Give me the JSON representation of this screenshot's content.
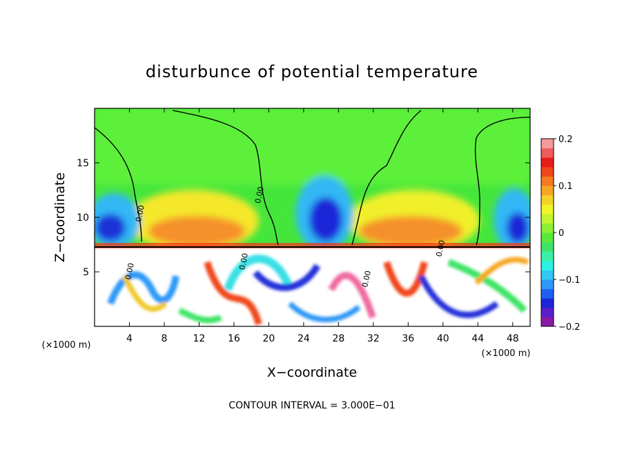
{
  "chart_data": {
    "type": "heatmap",
    "title": "disturbunce of potential temperature",
    "xlabel": "X−coordinate",
    "ylabel": "Z−coordinate",
    "x_unit": "(×1000 m)",
    "z_unit": "(×1000 m)",
    "xlim": [
      0,
      50
    ],
    "ylim": [
      0,
      20
    ],
    "x_ticks": [
      4,
      8,
      12,
      16,
      20,
      24,
      28,
      32,
      36,
      40,
      44,
      48
    ],
    "x_tick_labels": [
      "4",
      "8",
      "12",
      "16",
      "20",
      "24",
      "28",
      "32",
      "36",
      "40",
      "44",
      "48"
    ],
    "y_ticks": [
      5,
      10,
      15
    ],
    "y_tick_labels": [
      "5",
      "10",
      "15"
    ],
    "contour_labels": [
      {
        "text": "0.00",
        "x": 5.5,
        "z": 10.3
      },
      {
        "text": "0.00",
        "x": 19.2,
        "z": 12.0
      },
      {
        "text": "0.00",
        "x": 17.4,
        "z": 5.9
      },
      {
        "text": "0.00",
        "x": 31.5,
        "z": 4.3
      },
      {
        "text": "0.00",
        "x": 4.3,
        "z": 5.0
      },
      {
        "text": "0.00",
        "x": 40.0,
        "z": 7.1
      }
    ],
    "colorbar": {
      "min": -0.2,
      "max": 0.2,
      "tick_values": [
        0.2,
        0.1,
        0,
        -0.1,
        -0.2
      ],
      "tick_labels": [
        "0.2",
        "0.1",
        "0",
        "−0.1",
        "−0.2"
      ],
      "colors": [
        "#8c1aa6",
        "#5a1fc8",
        "#1f25d9",
        "#1e5ff0",
        "#2f97f7",
        "#33c8f5",
        "#2ef0e6",
        "#3cf0a8",
        "#3fe466",
        "#5ae83a",
        "#8cf032",
        "#c2f52e",
        "#f0f52a",
        "#f5d226",
        "#f5a624",
        "#f57a20",
        "#f0461c",
        "#e61c1c",
        "#f05a5a",
        "#f59a9a"
      ]
    },
    "footer": "CONTOUR INTERVAL = 3.000E−01"
  }
}
